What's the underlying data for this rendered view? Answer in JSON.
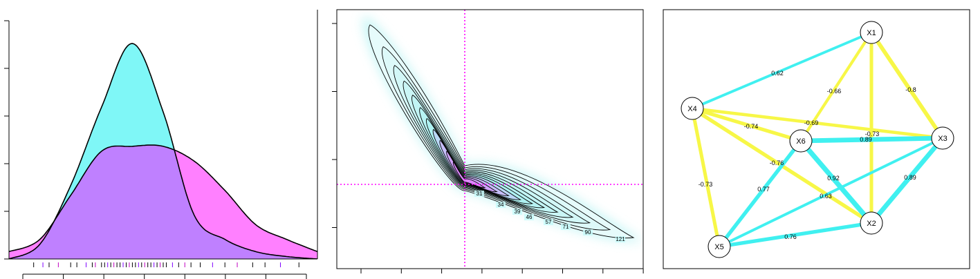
{
  "chart_data": [
    {
      "type": "area",
      "panel": "density",
      "title": "",
      "xlabel": "",
      "ylabel": "",
      "colors": {
        "cyan_fill": "#7ff7f7",
        "magenta_fill": "#ff80ff",
        "overlap_fill": "#bf80ff",
        "outline": "#000000"
      },
      "x": [
        0,
        0.1,
        0.2,
        0.3,
        0.4,
        0.5,
        0.6,
        0.7,
        0.8,
        0.9,
        1.0
      ],
      "series": [
        {
          "values": [
            0.0,
            0.06,
            0.3,
            0.62,
            0.88,
            0.6,
            0.18,
            0.08,
            0.03,
            0.01,
            0.0
          ]
        },
        {
          "values": [
            0.03,
            0.08,
            0.26,
            0.44,
            0.46,
            0.46,
            0.4,
            0.28,
            0.14,
            0.08,
            0.03
          ]
        }
      ],
      "rug": [
        0.08,
        0.11,
        0.13,
        0.16,
        0.2,
        0.22,
        0.25,
        0.27,
        0.28,
        0.3,
        0.31,
        0.32,
        0.33,
        0.34,
        0.35,
        0.36,
        0.37,
        0.38,
        0.39,
        0.4,
        0.41,
        0.42,
        0.43,
        0.44,
        0.45,
        0.46,
        0.47,
        0.48,
        0.49,
        0.5,
        0.51,
        0.53,
        0.55,
        0.57,
        0.59,
        0.62,
        0.66,
        0.7,
        0.74,
        0.79,
        0.83,
        0.88,
        0.94
      ],
      "xticks": 8,
      "yticks": 6
    },
    {
      "type": "contour",
      "panel": "contour",
      "title": "",
      "xlabel": "",
      "ylabel": "",
      "contour_labels": [
        "31",
        "34",
        "39",
        "46",
        "57",
        "71",
        "90",
        "121"
      ],
      "reference_color": "#ff00ff",
      "fill_colors": {
        "outer": "#e6fbfb",
        "mid": "#aef1f1",
        "inner": "#dd88ff"
      },
      "xticks": 8,
      "yticks": 4
    },
    {
      "type": "network",
      "panel": "network",
      "title": "",
      "nodes": [
        "X1",
        "X2",
        "X3",
        "X4",
        "X5",
        "X6"
      ],
      "positive_color": "#40f0f0",
      "negative_color": "#f7f747",
      "edges": [
        {
          "from": "X1",
          "to": "X4",
          "weight": 0.62,
          "label": "0.62"
        },
        {
          "from": "X1",
          "to": "X6",
          "weight": -0.66,
          "label": "-0.66"
        },
        {
          "from": "X1",
          "to": "X3",
          "weight": -0.8,
          "label": "-0.8"
        },
        {
          "from": "X1",
          "to": "X2",
          "weight": -0.73,
          "label": "-0.73"
        },
        {
          "from": "X4",
          "to": "X3",
          "weight": -0.69,
          "label": "-0.69"
        },
        {
          "from": "X4",
          "to": "X6",
          "weight": -0.74,
          "label": "-0.74"
        },
        {
          "from": "X4",
          "to": "X2",
          "weight": -0.76,
          "label": "-0.76"
        },
        {
          "from": "X4",
          "to": "X5",
          "weight": -0.73,
          "label": "-0.73"
        },
        {
          "from": "X6",
          "to": "X3",
          "weight": 0.89,
          "label": "0.89"
        },
        {
          "from": "X6",
          "to": "X2",
          "weight": 0.92,
          "label": "0.92"
        },
        {
          "from": "X6",
          "to": "X5",
          "weight": 0.77,
          "label": "0.77"
        },
        {
          "from": "X3",
          "to": "X2",
          "weight": 0.89,
          "label": "0.89"
        },
        {
          "from": "X3",
          "to": "X5",
          "weight": 0.63,
          "label": "0.63"
        },
        {
          "from": "X2",
          "to": "X5",
          "weight": 0.76,
          "label": "0.76"
        }
      ]
    }
  ]
}
